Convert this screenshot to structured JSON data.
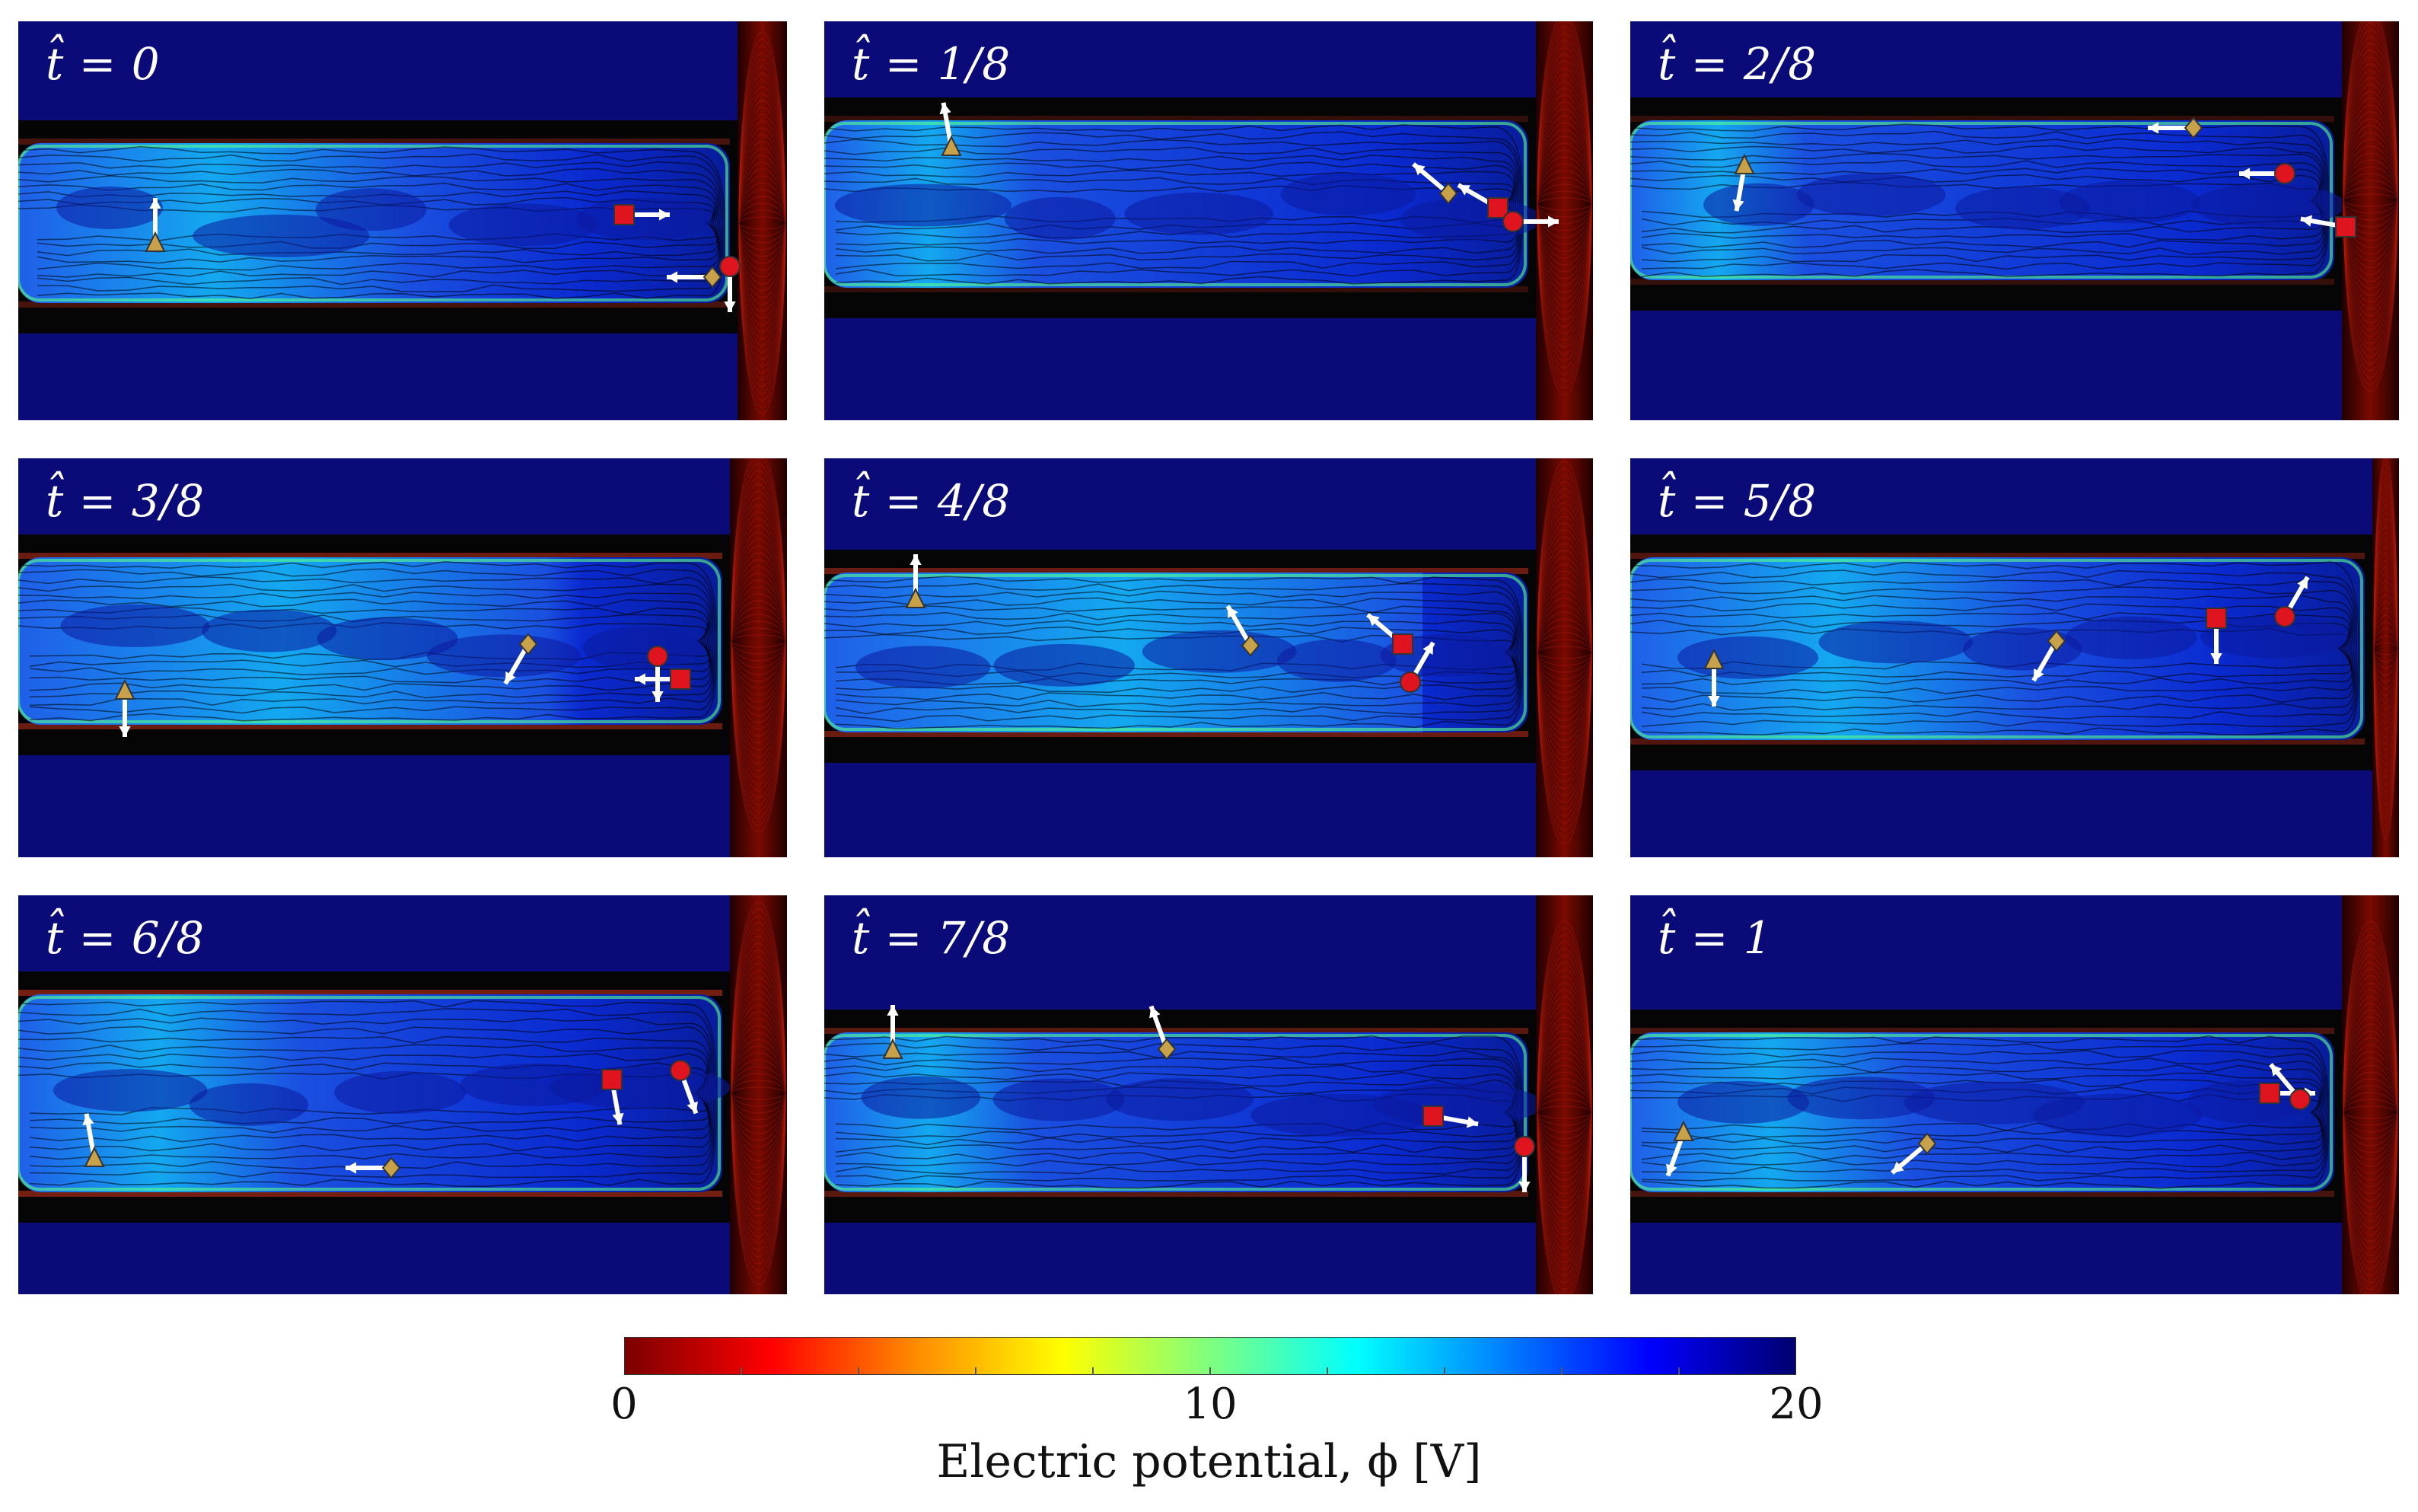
{
  "panels": [
    {
      "label": "t̂ = 0"
    },
    {
      "label": "t̂ = 1/8"
    },
    {
      "label": "t̂ = 2/8"
    },
    {
      "label": "t̂ = 3/8"
    },
    {
      "label": "t̂ = 4/8"
    },
    {
      "label": "t̂ = 5/8"
    },
    {
      "label": "t̂ = 6/8"
    },
    {
      "label": "t̂ = 7/8"
    },
    {
      "label": "t̂ = 1"
    }
  ],
  "colorbar": {
    "min": 0,
    "max": 20,
    "ticks": [
      "0",
      "10",
      "20"
    ],
    "title": "Electric potential, ϕ [V]",
    "colors": [
      "#7a0000",
      "#ff0000",
      "#ff8c00",
      "#ffff00",
      "#7fff7f",
      "#00ffff",
      "#0080ff",
      "#0000ff",
      "#000070"
    ]
  },
  "markers": [
    "triangle",
    "square",
    "circle",
    "diamond"
  ],
  "marker_colors": {
    "triangle": "#c8a24a",
    "square": "#e0141e",
    "circle": "#e0141e",
    "diamond": "#c8a24a"
  }
}
